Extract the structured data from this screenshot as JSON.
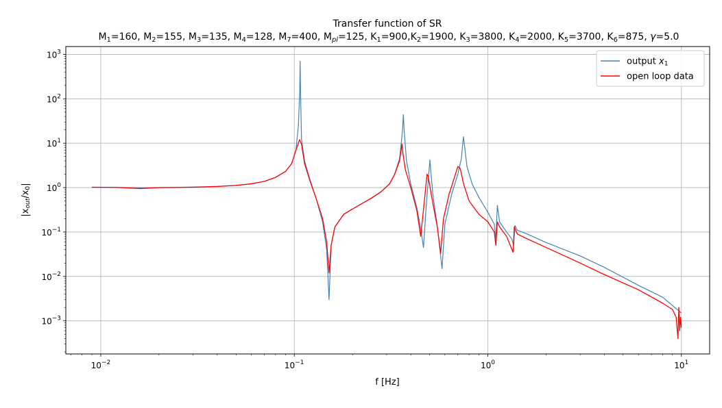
{
  "chart_data": {
    "type": "line",
    "title": "Transfer function of SR",
    "subtitle_parts": [
      {
        "t": "M"
      },
      {
        "t": "1",
        "sub": true
      },
      {
        "t": "=160, M"
      },
      {
        "t": "2",
        "sub": true
      },
      {
        "t": "=155, M"
      },
      {
        "t": "3",
        "sub": true
      },
      {
        "t": "=135, M"
      },
      {
        "t": "4",
        "sub": true
      },
      {
        "t": "=128, M"
      },
      {
        "t": "7",
        "sub": true
      },
      {
        "t": "=400, M"
      },
      {
        "t": "pl",
        "sub": true,
        "italic": true
      },
      {
        "t": "=125, K"
      },
      {
        "t": "1",
        "sub": true
      },
      {
        "t": "=900,K"
      },
      {
        "t": "2",
        "sub": true
      },
      {
        "t": "=1900, K"
      },
      {
        "t": "3",
        "sub": true
      },
      {
        "t": "=3800, K"
      },
      {
        "t": "4",
        "sub": true
      },
      {
        "t": "=2000, K"
      },
      {
        "t": "5",
        "sub": true
      },
      {
        "t": "=3700, K"
      },
      {
        "t": "6",
        "sub": true
      },
      {
        "t": "=875, "
      },
      {
        "t": "γ",
        "italic": true
      },
      {
        "t": "=5.0"
      }
    ],
    "xlabel": "f [Hz]",
    "ylabel_parts": [
      {
        "t": "|x"
      },
      {
        "t": "out",
        "sub": true,
        "italic": true
      },
      {
        "t": "/x"
      },
      {
        "t": "0",
        "sub": true
      },
      {
        "t": "|"
      }
    ],
    "x_scale": "log",
    "y_scale": "log",
    "xlim": [
      0.0066,
      14
    ],
    "ylim": [
      0.00018,
      1500
    ],
    "x_ticks": [
      {
        "value": 0.01,
        "base": "10",
        "exp": "−2"
      },
      {
        "value": 0.1,
        "base": "10",
        "exp": "−1"
      },
      {
        "value": 1,
        "base": "10",
        "exp": "0"
      },
      {
        "value": 10,
        "base": "10",
        "exp": "1"
      }
    ],
    "y_ticks": [
      {
        "value": 0.001,
        "base": "10",
        "exp": "−3"
      },
      {
        "value": 0.01,
        "base": "10",
        "exp": "−2"
      },
      {
        "value": 0.1,
        "base": "10",
        "exp": "−1"
      },
      {
        "value": 1,
        "base": "10",
        "exp": "0"
      },
      {
        "value": 10,
        "base": "10",
        "exp": "1"
      },
      {
        "value": 100,
        "base": "10",
        "exp": "2"
      },
      {
        "value": 1000,
        "base": "10",
        "exp": "3"
      }
    ],
    "grid": true,
    "legend_position": "top-right",
    "series": [
      {
        "name_parts": [
          {
            "t": "output "
          },
          {
            "t": "x",
            "italic": true
          },
          {
            "t": "1",
            "sub": true
          }
        ],
        "color": "#4682b4",
        "points": [
          [
            0.009,
            1.02
          ],
          [
            0.012,
            1.01
          ],
          [
            0.016,
            0.99
          ],
          [
            0.02,
            1.0
          ],
          [
            0.03,
            1.03
          ],
          [
            0.04,
            1.06
          ],
          [
            0.05,
            1.12
          ],
          [
            0.06,
            1.22
          ],
          [
            0.07,
            1.38
          ],
          [
            0.08,
            1.7
          ],
          [
            0.09,
            2.3
          ],
          [
            0.097,
            3.5
          ],
          [
            0.102,
            7.0
          ],
          [
            0.105,
            25
          ],
          [
            0.1067,
            150
          ],
          [
            0.1072,
            700
          ],
          [
            0.1077,
            150
          ],
          [
            0.109,
            12
          ],
          [
            0.113,
            4.0
          ],
          [
            0.12,
            1.6
          ],
          [
            0.13,
            0.55
          ],
          [
            0.14,
            0.17
          ],
          [
            0.147,
            0.04
          ],
          [
            0.1512,
            0.003
          ],
          [
            0.155,
            0.05
          ],
          [
            0.162,
            0.13
          ],
          [
            0.18,
            0.25
          ],
          [
            0.2,
            0.33
          ],
          [
            0.22,
            0.42
          ],
          [
            0.25,
            0.57
          ],
          [
            0.28,
            0.8
          ],
          [
            0.31,
            1.2
          ],
          [
            0.33,
            2.0
          ],
          [
            0.35,
            4.5
          ],
          [
            0.362,
            18
          ],
          [
            0.366,
            44
          ],
          [
            0.37,
            18
          ],
          [
            0.38,
            4.0
          ],
          [
            0.4,
            1.2
          ],
          [
            0.43,
            0.35
          ],
          [
            0.45,
            0.12
          ],
          [
            0.465,
            0.045
          ],
          [
            0.48,
            0.35
          ],
          [
            0.495,
            2.0
          ],
          [
            0.502,
            4.2
          ],
          [
            0.508,
            2.2
          ],
          [
            0.52,
            0.7
          ],
          [
            0.55,
            0.12
          ],
          [
            0.58,
            0.015
          ],
          [
            0.6,
            0.15
          ],
          [
            0.65,
            0.7
          ],
          [
            0.7,
            2.0
          ],
          [
            0.73,
            4.5
          ],
          [
            0.748,
            14
          ],
          [
            0.76,
            8.0
          ],
          [
            0.78,
            3.0
          ],
          [
            0.83,
            1.2
          ],
          [
            0.9,
            0.6
          ],
          [
            1.0,
            0.28
          ],
          [
            1.08,
            0.15
          ],
          [
            1.1,
            0.07
          ],
          [
            1.12,
            0.4
          ],
          [
            1.15,
            0.17
          ],
          [
            1.25,
            0.1
          ],
          [
            1.33,
            0.07
          ],
          [
            1.36,
            0.05
          ],
          [
            1.38,
            0.14
          ],
          [
            1.42,
            0.11
          ],
          [
            1.6,
            0.09
          ],
          [
            2.0,
            0.058
          ],
          [
            3.0,
            0.029
          ],
          [
            4.0,
            0.016
          ],
          [
            6.0,
            0.0063
          ],
          [
            8.0,
            0.0034
          ],
          [
            10.0,
            0.0015
          ]
        ]
      },
      {
        "name": "open loop data",
        "color": "#ff0000",
        "points": [
          [
            0.009,
            1.02
          ],
          [
            0.012,
            1.01
          ],
          [
            0.016,
            0.95
          ],
          [
            0.02,
            1.0
          ],
          [
            0.03,
            1.02
          ],
          [
            0.04,
            1.06
          ],
          [
            0.05,
            1.12
          ],
          [
            0.06,
            1.22
          ],
          [
            0.07,
            1.38
          ],
          [
            0.08,
            1.7
          ],
          [
            0.09,
            2.3
          ],
          [
            0.097,
            3.5
          ],
          [
            0.102,
            7.0
          ],
          [
            0.1065,
            12
          ],
          [
            0.109,
            9.5
          ],
          [
            0.113,
            3.5
          ],
          [
            0.12,
            1.5
          ],
          [
            0.13,
            0.55
          ],
          [
            0.14,
            0.2
          ],
          [
            0.147,
            0.06
          ],
          [
            0.1512,
            0.012
          ],
          [
            0.155,
            0.05
          ],
          [
            0.162,
            0.13
          ],
          [
            0.18,
            0.25
          ],
          [
            0.2,
            0.33
          ],
          [
            0.22,
            0.42
          ],
          [
            0.25,
            0.58
          ],
          [
            0.28,
            0.8
          ],
          [
            0.31,
            1.2
          ],
          [
            0.33,
            2.0
          ],
          [
            0.35,
            4.0
          ],
          [
            0.36,
            9.5
          ],
          [
            0.365,
            5.5
          ],
          [
            0.375,
            2.5
          ],
          [
            0.4,
            1.0
          ],
          [
            0.43,
            0.3
          ],
          [
            0.45,
            0.08
          ],
          [
            0.47,
            0.5
          ],
          [
            0.485,
            2.0
          ],
          [
            0.492,
            1.8
          ],
          [
            0.51,
            0.7
          ],
          [
            0.55,
            0.12
          ],
          [
            0.57,
            0.033
          ],
          [
            0.59,
            0.2
          ],
          [
            0.63,
            0.7
          ],
          [
            0.68,
            2.0
          ],
          [
            0.7,
            3.0
          ],
          [
            0.72,
            2.7
          ],
          [
            0.75,
            1.2
          ],
          [
            0.8,
            0.5
          ],
          [
            0.9,
            0.25
          ],
          [
            1.0,
            0.17
          ],
          [
            1.08,
            0.1
          ],
          [
            1.1,
            0.05
          ],
          [
            1.12,
            0.17
          ],
          [
            1.15,
            0.13
          ],
          [
            1.25,
            0.08
          ],
          [
            1.35,
            0.035
          ],
          [
            1.37,
            0.13
          ],
          [
            1.42,
            0.09
          ],
          [
            1.6,
            0.07
          ],
          [
            2.0,
            0.045
          ],
          [
            3.0,
            0.02
          ],
          [
            4.0,
            0.011
          ],
          [
            6.0,
            0.005
          ],
          [
            8.0,
            0.0025
          ],
          [
            9.0,
            0.0018
          ],
          [
            9.4,
            0.0012
          ],
          [
            9.6,
            0.0004
          ],
          [
            9.7,
            0.002
          ],
          [
            9.8,
            0.0006
          ],
          [
            9.9,
            0.0012
          ],
          [
            10.0,
            0.0007
          ]
        ]
      }
    ]
  }
}
